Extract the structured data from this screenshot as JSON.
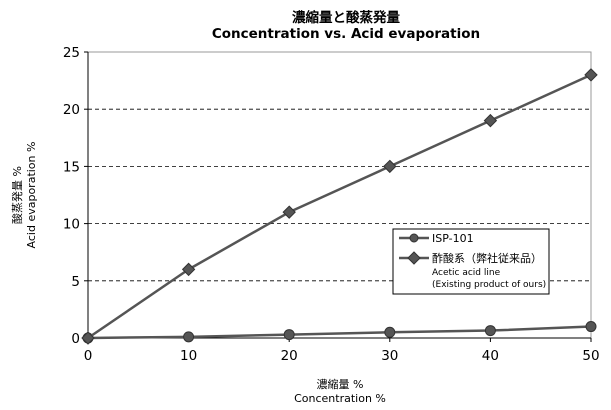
{
  "chart_data": {
    "type": "line",
    "title_ja": "濃縮量と酸蒸発量",
    "title_en": "Concentration vs. Acid evaporation",
    "xlabel_ja": "濃縮量 %",
    "xlabel_en": "Concentration %",
    "ylabel_ja": "酸蒸発量 %",
    "ylabel_en": "Acid evaporation %",
    "xlim": [
      0,
      50
    ],
    "ylim": [
      0,
      25
    ],
    "xticks": [
      "0",
      "10",
      "20",
      "30",
      "40",
      "50"
    ],
    "yticks": [
      "0",
      "5",
      "10",
      "15",
      "20",
      "25"
    ],
    "grid": "horizontal dashed",
    "legend_position": "right-middle",
    "series": [
      {
        "name": "ISP-101",
        "marker": "circle",
        "color": "#555555",
        "x": [
          0,
          10,
          20,
          30,
          40,
          50
        ],
        "y": [
          0,
          0.1,
          0.3,
          0.5,
          0.65,
          1.0
        ]
      },
      {
        "name": "酢酸系（弊社従来品）",
        "name_sub1": "Acetic acid line",
        "name_sub2": "(Existing product of ours)",
        "marker": "diamond",
        "color": "#555555",
        "x": [
          0,
          10,
          20,
          30,
          40,
          50
        ],
        "y": [
          0,
          6,
          11,
          15,
          19,
          23
        ]
      }
    ]
  }
}
